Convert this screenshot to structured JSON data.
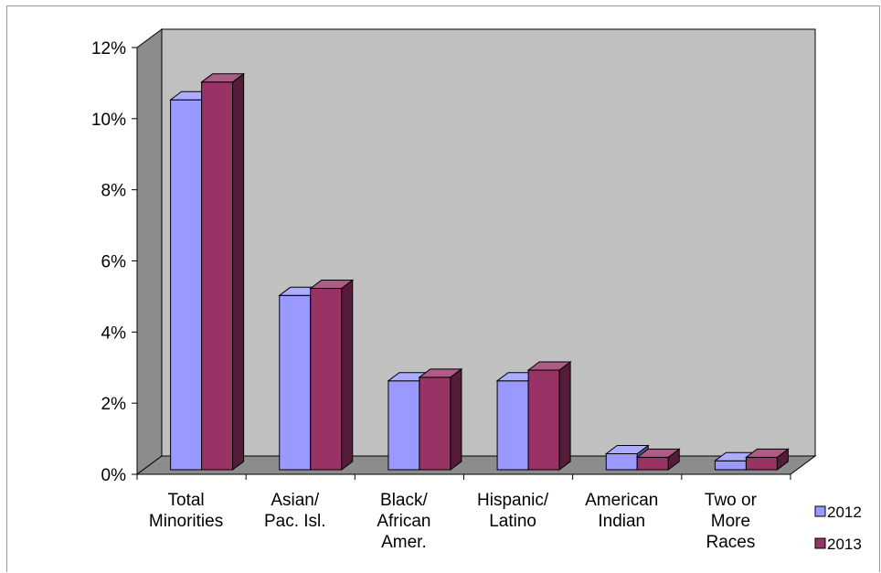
{
  "chart_data": {
    "type": "bar",
    "categories": [
      [
        "Total",
        "Minorities"
      ],
      [
        "Asian/",
        "Pac. Isl."
      ],
      [
        "Black/",
        "African",
        "Amer."
      ],
      [
        "Hispanic/",
        "Latino"
      ],
      [
        "American",
        "Indian"
      ],
      [
        "Two or",
        "More",
        "Races"
      ]
    ],
    "series": [
      {
        "name": "2012",
        "color": "#9999ff",
        "values": [
          10.4,
          4.9,
          2.5,
          2.5,
          0.45,
          0.25
        ]
      },
      {
        "name": "2013",
        "color": "#993366",
        "values": [
          10.9,
          5.1,
          2.6,
          2.8,
          0.35,
          0.35
        ]
      }
    ],
    "ylim": [
      0,
      12
    ],
    "yticks": [
      "0%",
      "2%",
      "4%",
      "6%",
      "8%",
      "10%",
      "12%"
    ],
    "ytick_values": [
      0,
      2,
      4,
      6,
      8,
      10,
      12
    ],
    "grid": false,
    "legend_position": "bottom-right",
    "title": "",
    "xlabel": "",
    "ylabel": ""
  }
}
